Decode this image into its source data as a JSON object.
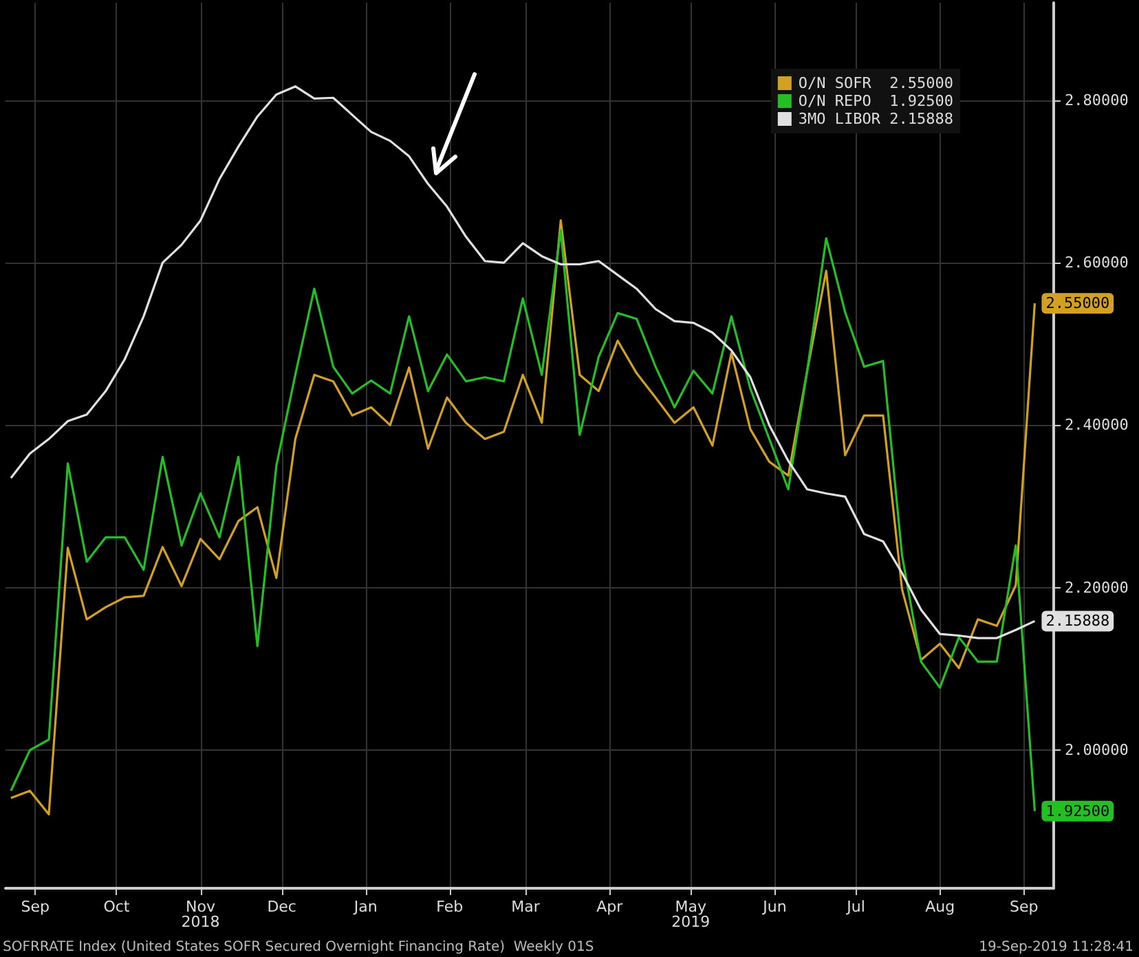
{
  "chart_data": {
    "type": "line",
    "x": [
      "2018-09-06",
      "2018-09-13",
      "2018-09-20",
      "2018-09-27",
      "2018-10-04",
      "2018-10-11",
      "2018-10-18",
      "2018-10-25",
      "2018-11-01",
      "2018-11-08",
      "2018-11-15",
      "2018-11-22",
      "2018-11-29",
      "2018-12-06",
      "2018-12-13",
      "2018-12-20",
      "2018-12-27",
      "2019-01-03",
      "2019-01-10",
      "2019-01-17",
      "2019-01-24",
      "2019-01-31",
      "2019-02-07",
      "2019-02-14",
      "2019-02-21",
      "2019-02-28",
      "2019-03-07",
      "2019-03-14",
      "2019-03-21",
      "2019-03-28",
      "2019-04-04",
      "2019-04-11",
      "2019-04-18",
      "2019-04-25",
      "2019-05-02",
      "2019-05-09",
      "2019-05-16",
      "2019-05-23",
      "2019-05-30",
      "2019-06-06",
      "2019-06-13",
      "2019-06-20",
      "2019-06-27",
      "2019-07-04",
      "2019-07-11",
      "2019-07-18",
      "2019-07-25",
      "2019-08-01",
      "2019-08-08",
      "2019-08-15",
      "2019-08-22",
      "2019-08-29",
      "2019-09-05",
      "2019-09-12",
      "2019-09-19"
    ],
    "series": [
      {
        "name": "O/N SOFR  2.55000",
        "color": "#d4a020",
        "values": [
          1.941,
          1.95,
          1.921,
          2.249,
          2.161,
          2.176,
          2.188,
          2.19,
          2.25,
          2.202,
          2.26,
          2.235,
          2.282,
          2.299,
          2.212,
          2.383,
          2.462,
          2.454,
          2.412,
          2.422,
          2.4,
          2.471,
          2.371,
          2.434,
          2.403,
          2.383,
          2.392,
          2.462,
          2.403,
          2.652,
          2.462,
          2.442,
          2.504,
          2.464,
          2.434,
          2.403,
          2.422,
          2.375,
          2.489,
          2.395,
          2.355,
          2.338,
          2.467,
          2.59,
          2.363,
          2.412,
          2.412,
          2.198,
          2.111,
          2.131,
          2.101,
          2.161,
          2.153,
          2.203,
          2.55
        ],
        "value_labels": [
          null,
          null,
          null,
          null,
          null,
          null,
          null,
          null,
          null,
          null,
          null,
          null,
          null,
          null,
          null,
          null,
          null,
          null,
          null,
          null,
          null,
          null,
          null,
          null,
          null,
          null,
          null,
          null,
          null,
          null,
          null,
          null,
          null,
          null,
          null,
          null,
          null,
          null,
          null,
          null,
          null,
          null,
          null,
          null,
          null,
          null,
          null,
          null,
          null,
          null,
          null,
          null,
          null,
          null,
          "2.55000"
        ]
      },
      {
        "name": "O/N REPO  1.92500",
        "color": "#22c022",
        "values": [
          1.95,
          2.0,
          2.013,
          2.353,
          2.232,
          2.262,
          2.262,
          2.222,
          2.361,
          2.252,
          2.316,
          2.262,
          2.361,
          2.128,
          2.35,
          2.462,
          2.568,
          2.472,
          2.439,
          2.455,
          2.439,
          2.534,
          2.442,
          2.487,
          2.454,
          2.459,
          2.454,
          2.556,
          2.462,
          2.64,
          2.388,
          2.484,
          2.538,
          2.531,
          2.472,
          2.422,
          2.467,
          2.439,
          2.534,
          2.445,
          2.383,
          2.321,
          2.467,
          2.63,
          2.539,
          2.472,
          2.479,
          2.24,
          2.109,
          2.077,
          2.139,
          2.109,
          2.109,
          2.252,
          1.925
        ],
        "value_labels": [
          null,
          null,
          null,
          null,
          null,
          null,
          null,
          null,
          null,
          null,
          null,
          null,
          null,
          null,
          null,
          null,
          null,
          null,
          null,
          null,
          null,
          null,
          null,
          null,
          null,
          null,
          null,
          null,
          null,
          null,
          null,
          null,
          null,
          null,
          null,
          null,
          null,
          null,
          null,
          null,
          null,
          null,
          null,
          null,
          null,
          null,
          null,
          null,
          null,
          null,
          null,
          null,
          null,
          null,
          "1.92500"
        ]
      },
      {
        "name": "3MO LIBOR 2.15888",
        "color": "#e0e0e0",
        "values": [
          2.335,
          2.365,
          2.383,
          2.405,
          2.413,
          2.442,
          2.481,
          2.534,
          2.6,
          2.622,
          2.652,
          2.703,
          2.743,
          2.78,
          2.807,
          2.817,
          2.802,
          2.803,
          2.782,
          2.761,
          2.75,
          2.731,
          2.697,
          2.669,
          2.632,
          2.602,
          2.6,
          2.624,
          2.608,
          2.598,
          2.598,
          2.602,
          2.585,
          2.568,
          2.543,
          2.528,
          2.526,
          2.514,
          2.492,
          2.459,
          2.4,
          2.356,
          2.321,
          2.316,
          2.312,
          2.266,
          2.257,
          2.218,
          2.173,
          2.143,
          2.141,
          2.138,
          2.138,
          2.148,
          2.15888
        ],
        "value_labels": [
          null,
          null,
          null,
          null,
          null,
          null,
          null,
          null,
          null,
          null,
          null,
          null,
          null,
          null,
          null,
          null,
          null,
          null,
          null,
          null,
          null,
          null,
          null,
          null,
          null,
          null,
          null,
          null,
          null,
          null,
          null,
          null,
          null,
          null,
          null,
          null,
          null,
          null,
          null,
          null,
          null,
          null,
          null,
          null,
          null,
          null,
          null,
          null,
          null,
          null,
          null,
          null,
          null,
          null,
          "2.15888"
        ]
      }
    ],
    "xlim": [
      "2018-09-04",
      "2019-09-26"
    ],
    "xticks": [
      {
        "value": "2018-09-15",
        "label": "Sep"
      },
      {
        "value": "2018-10-15",
        "label": "Oct"
      },
      {
        "value": "2018-11-15",
        "label": "Nov\n2018"
      },
      {
        "value": "2018-12-15",
        "label": "Dec"
      },
      {
        "value": "2019-01-15",
        "label": "Jan"
      },
      {
        "value": "2019-02-15",
        "label": "Feb"
      },
      {
        "value": "2019-03-15",
        "label": "Mar"
      },
      {
        "value": "2019-04-15",
        "label": "Apr"
      },
      {
        "value": "2019-05-15",
        "label": "May\n2019"
      },
      {
        "value": "2019-06-15",
        "label": "Jun"
      },
      {
        "value": "2019-07-15",
        "label": "Jul"
      },
      {
        "value": "2019-08-15",
        "label": "Aug"
      },
      {
        "value": "2019-09-15",
        "label": "Sep"
      }
    ],
    "ylim": [
      1.83,
      2.92
    ],
    "yticks": [
      {
        "value": 2.0,
        "label": "2.00000"
      },
      {
        "value": 2.2,
        "label": "2.20000"
      },
      {
        "value": 2.4,
        "label": "2.40000"
      },
      {
        "value": 2.6,
        "label": "2.60000"
      },
      {
        "value": 2.8,
        "label": "2.80000"
      }
    ],
    "grid": true,
    "legend": "top right",
    "line_style": "solid",
    "annotations": [
      "SOFRRATE Index (United States SOFR Secured Overnight Financing Rate)  Weekly 01S",
      "19-Sep-2019 11:28:41"
    ]
  }
}
